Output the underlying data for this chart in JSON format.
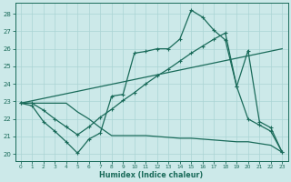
{
  "xlabel": "Humidex (Indice chaleur)",
  "bg_color": "#cce9e9",
  "grid_color": "#aad4d4",
  "line_color": "#1a6b5a",
  "xlim": [
    -0.5,
    23.5
  ],
  "ylim": [
    19.6,
    28.6
  ],
  "yticks": [
    20,
    21,
    22,
    23,
    24,
    25,
    26,
    27,
    28
  ],
  "xticks": [
    0,
    1,
    2,
    3,
    4,
    5,
    6,
    7,
    8,
    9,
    10,
    11,
    12,
    13,
    14,
    15,
    16,
    17,
    18,
    19,
    20,
    21,
    22,
    23
  ],
  "line1_x": [
    0,
    1,
    2,
    3,
    4,
    5,
    6,
    7,
    8,
    9,
    10,
    11,
    12,
    13,
    14,
    15,
    16,
    17,
    18,
    19,
    20,
    21,
    22,
    23
  ],
  "line1_y": [
    22.9,
    22.75,
    21.85,
    21.3,
    20.7,
    20.05,
    20.85,
    21.2,
    23.3,
    23.4,
    25.75,
    25.85,
    26.0,
    26.0,
    26.55,
    28.2,
    27.8,
    27.05,
    26.5,
    23.85,
    25.9,
    21.85,
    21.5,
    20.1
  ],
  "line2_x": [
    0,
    23
  ],
  "line2_y": [
    22.9,
    26.0
  ],
  "line3_x": [
    0,
    1,
    2,
    3,
    4,
    5,
    6,
    7,
    8,
    9,
    10,
    11,
    12,
    13,
    14,
    15,
    16,
    17,
    18,
    19,
    20,
    21,
    22,
    23
  ],
  "line3_y": [
    22.9,
    22.9,
    22.5,
    22.0,
    21.55,
    21.1,
    21.55,
    22.1,
    22.55,
    23.05,
    23.5,
    24.0,
    24.45,
    24.85,
    25.3,
    25.75,
    26.15,
    26.55,
    26.9,
    23.85,
    22.0,
    21.65,
    21.3,
    20.1
  ],
  "line4_x": [
    0,
    1,
    2,
    3,
    4,
    5,
    6,
    7,
    8,
    9,
    10,
    11,
    12,
    13,
    14,
    15,
    16,
    17,
    18,
    19,
    20,
    21,
    22,
    23
  ],
  "line4_y": [
    22.9,
    22.9,
    22.9,
    22.9,
    22.9,
    22.4,
    22.0,
    21.5,
    21.05,
    21.05,
    21.05,
    21.05,
    21.0,
    20.95,
    20.9,
    20.9,
    20.85,
    20.8,
    20.75,
    20.7,
    20.7,
    20.6,
    20.5,
    20.1
  ]
}
